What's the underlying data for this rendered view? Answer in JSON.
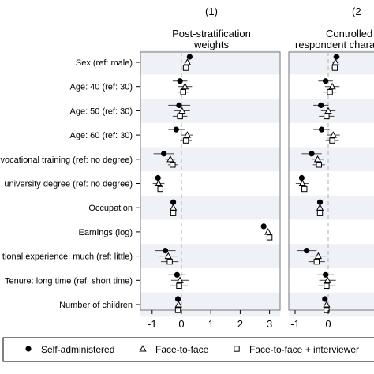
{
  "chart_data": {
    "type": "scatter",
    "description_type": "coefficient-plot",
    "rows": [
      "Sex (ref: male)",
      "Age: 40 (ref: 30)",
      "Age: 50 (ref: 30)",
      "Age: 60 (ref: 30)",
      "vocational training (ref: no degree)",
      "university degree (ref: no degree)",
      "Occupation",
      "Earnings (log)",
      "tional experience: much (ref: little)",
      "Tenure: long time (ref: short time)",
      "Number of children"
    ],
    "panels": [
      {
        "number": "(1)",
        "title_line1": "Post-stratification",
        "title_line2": "weights",
        "xlim": [
          -1.4,
          3.5
        ],
        "xticks": [
          -1,
          0,
          1,
          2,
          3
        ],
        "series": [
          {
            "name": "Self-administered",
            "marker": "circle",
            "points": [
              [
                0.28,
                0.18,
                0.38
              ],
              [
                -0.05,
                -0.3,
                0.2
              ],
              [
                -0.08,
                -0.45,
                0.3
              ],
              [
                -0.18,
                -0.45,
                0.1
              ],
              [
                -0.6,
                -0.95,
                -0.25
              ],
              [
                -0.8,
                -1.0,
                -0.6
              ],
              [
                -0.28,
                -0.32,
                -0.24
              ],
              [
                2.8,
                2.74,
                2.86
              ],
              [
                -0.55,
                -0.9,
                -0.2
              ],
              [
                -0.15,
                -0.45,
                0.15
              ],
              [
                -0.12,
                -0.17,
                -0.07
              ]
            ]
          },
          {
            "name": "Face-to-face",
            "marker": "triangle",
            "points": [
              [
                0.2,
                0.1,
                0.3
              ],
              [
                0.12,
                -0.12,
                0.36
              ],
              [
                0.02,
                -0.25,
                0.29
              ],
              [
                0.2,
                0.0,
                0.4
              ],
              [
                -0.38,
                -0.55,
                -0.21
              ],
              [
                -0.78,
                -0.98,
                -0.58
              ],
              [
                -0.28,
                -0.32,
                -0.24
              ],
              [
                2.95,
                2.89,
                3.01
              ],
              [
                -0.45,
                -0.75,
                -0.15
              ],
              [
                -0.05,
                -0.35,
                0.25
              ],
              [
                -0.1,
                -0.15,
                -0.05
              ]
            ]
          },
          {
            "name": "Face-to-face + interviewer",
            "marker": "square",
            "points": [
              [
                0.15,
                0.05,
                0.25
              ],
              [
                0.06,
                -0.14,
                0.26
              ],
              [
                -0.05,
                -0.3,
                0.2
              ],
              [
                0.15,
                -0.05,
                0.35
              ],
              [
                -0.3,
                -0.46,
                -0.14
              ],
              [
                -0.72,
                -0.92,
                -0.52
              ],
              [
                -0.28,
                -0.32,
                -0.24
              ],
              [
                3.0,
                2.94,
                3.06
              ],
              [
                -0.4,
                -0.7,
                -0.1
              ],
              [
                -0.08,
                -0.38,
                0.22
              ],
              [
                -0.12,
                -0.17,
                -0.07
              ]
            ]
          }
        ]
      },
      {
        "number": "(2",
        "title_line1": "Controlled",
        "title_line2": "respondent chara",
        "xlim": [
          -1.4,
          3.5
        ],
        "xticks": [
          -1,
          0
        ],
        "series": [
          {
            "name": "Self-administered",
            "marker": "circle",
            "points": [
              [
                0.25,
                0.15,
                0.35
              ],
              [
                -0.08,
                -0.3,
                0.14
              ],
              [
                -0.22,
                -0.45,
                0.01
              ],
              [
                -0.2,
                -0.45,
                0.05
              ],
              [
                -0.5,
                -0.8,
                -0.2
              ],
              [
                -0.8,
                -1.0,
                -0.6
              ],
              [
                -0.25,
                -0.29,
                -0.21
              ],
              null,
              [
                -0.65,
                -0.95,
                -0.35
              ],
              [
                -0.08,
                -0.33,
                0.17
              ],
              [
                -0.1,
                -0.15,
                -0.05
              ]
            ]
          },
          {
            "name": "Face-to-face",
            "marker": "triangle",
            "points": [
              [
                0.22,
                0.12,
                0.32
              ],
              [
                0.12,
                -0.1,
                0.34
              ],
              [
                0.0,
                -0.22,
                0.22
              ],
              [
                0.15,
                -0.05,
                0.35
              ],
              [
                -0.32,
                -0.5,
                -0.14
              ],
              [
                -0.78,
                -0.98,
                -0.58
              ],
              [
                -0.25,
                -0.29,
                -0.21
              ],
              null,
              [
                -0.3,
                -0.55,
                -0.05
              ],
              [
                -0.02,
                -0.27,
                0.23
              ],
              [
                -0.05,
                -0.1,
                0.0
              ]
            ]
          },
          {
            "name": "Face-to-face + interviewer",
            "marker": "square",
            "points": [
              [
                0.2,
                0.1,
                0.3
              ],
              [
                0.05,
                -0.15,
                0.25
              ],
              [
                -0.05,
                -0.28,
                0.18
              ],
              [
                0.12,
                -0.08,
                0.32
              ],
              [
                -0.28,
                -0.46,
                -0.1
              ],
              [
                -0.72,
                -0.92,
                -0.52
              ],
              [
                -0.25,
                -0.29,
                -0.21
              ],
              null,
              [
                -0.35,
                -0.6,
                -0.1
              ],
              [
                -0.05,
                -0.3,
                0.2
              ],
              [
                -0.05,
                -0.1,
                0.0
              ]
            ]
          }
        ]
      }
    ],
    "legend": {
      "placement": "bottom",
      "entries": [
        {
          "label": "Self-administered",
          "marker": "circle"
        },
        {
          "label": "Face-to-face",
          "marker": "triangle"
        },
        {
          "label": "Face-to-face + interviewer",
          "marker": "square"
        }
      ]
    },
    "colors": {
      "marker": "#000000",
      "ci": "#555555",
      "refline": "#bbbbbb",
      "band": "#eef2f6",
      "frame": "#777777"
    }
  }
}
